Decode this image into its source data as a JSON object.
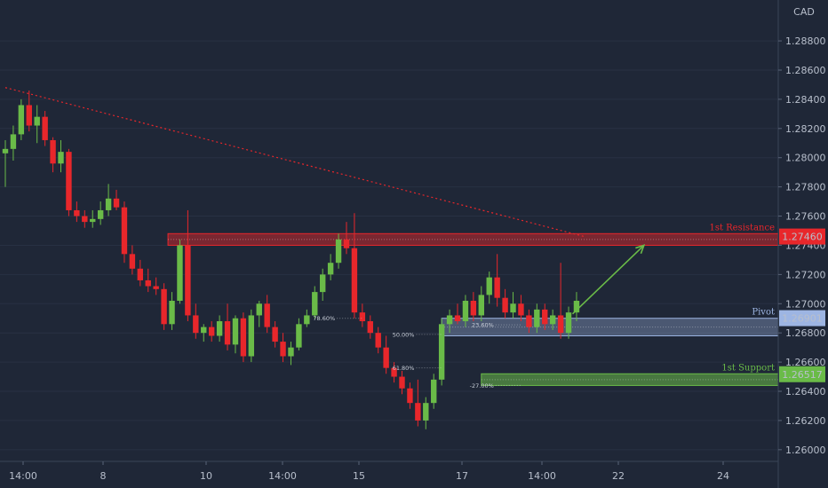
{
  "chart_data": {
    "type": "candlestick",
    "currency_label": "CAD",
    "colors": {
      "background": "#1f2737",
      "up": "#6abb48",
      "down": "#e8272b",
      "resistance": "#e8272b",
      "pivot": "#9db5e3",
      "support": "#6abb48",
      "trendline": "#e8272b",
      "arrow": "#6abb48"
    },
    "ylim": [
      1.2592,
      1.2908
    ],
    "y_ticks": [
      "1.26000",
      "1.26200",
      "1.26400",
      "1.26600",
      "1.26800",
      "1.27000",
      "1.27200",
      "1.27400",
      "1.27600",
      "1.27800",
      "1.28000",
      "1.28200",
      "1.28400",
      "1.28600",
      "1.28800"
    ],
    "x_ticks": [
      "14:00",
      "8",
      "10",
      "14:00",
      "15",
      "17",
      "14:00",
      "22",
      "24"
    ],
    "candles": [
      [
        1.2803,
        1.2812,
        1.278,
        1.2806
      ],
      [
        1.2806,
        1.2822,
        1.2798,
        1.2816
      ],
      [
        1.2816,
        1.284,
        1.2812,
        1.2836
      ],
      [
        1.2836,
        1.2846,
        1.2818,
        1.2822
      ],
      [
        1.2822,
        1.2836,
        1.281,
        1.2828
      ],
      [
        1.2828,
        1.2832,
        1.2808,
        1.2812
      ],
      [
        1.2812,
        1.2814,
        1.279,
        1.2796
      ],
      [
        1.2796,
        1.2812,
        1.279,
        1.2804
      ],
      [
        1.2804,
        1.2806,
        1.276,
        1.2764
      ],
      [
        1.2764,
        1.277,
        1.2756,
        1.276
      ],
      [
        1.276,
        1.2764,
        1.2752,
        1.2756
      ],
      [
        1.2756,
        1.2764,
        1.2752,
        1.2758
      ],
      [
        1.2758,
        1.277,
        1.2754,
        1.2764
      ],
      [
        1.2764,
        1.2782,
        1.276,
        1.2772
      ],
      [
        1.2772,
        1.2778,
        1.2764,
        1.2766
      ],
      [
        1.2766,
        1.277,
        1.2728,
        1.2734
      ],
      [
        1.2734,
        1.274,
        1.272,
        1.2724
      ],
      [
        1.2724,
        1.273,
        1.2712,
        1.2716
      ],
      [
        1.2716,
        1.2724,
        1.2708,
        1.2712
      ],
      [
        1.2712,
        1.2718,
        1.2706,
        1.271
      ],
      [
        1.271,
        1.2714,
        1.2682,
        1.2686
      ],
      [
        1.2686,
        1.2708,
        1.2682,
        1.2702
      ],
      [
        1.2702,
        1.2744,
        1.27,
        1.274
      ],
      [
        1.274,
        1.2764,
        1.2688,
        1.2692
      ],
      [
        1.2692,
        1.27,
        1.2676,
        1.268
      ],
      [
        1.268,
        1.2686,
        1.2674,
        1.2684
      ],
      [
        1.2684,
        1.2688,
        1.2674,
        1.2678
      ],
      [
        1.2678,
        1.2692,
        1.2674,
        1.2688
      ],
      [
        1.2688,
        1.27,
        1.2668,
        1.2672
      ],
      [
        1.2672,
        1.2692,
        1.2666,
        1.269
      ],
      [
        1.269,
        1.2694,
        1.266,
        1.2664
      ],
      [
        1.2664,
        1.2696,
        1.266,
        1.2692
      ],
      [
        1.2692,
        1.2702,
        1.2684,
        1.27
      ],
      [
        1.27,
        1.2706,
        1.268,
        1.2684
      ],
      [
        1.2684,
        1.2688,
        1.267,
        1.2674
      ],
      [
        1.2674,
        1.268,
        1.266,
        1.2664
      ],
      [
        1.2664,
        1.2674,
        1.2658,
        1.267
      ],
      [
        1.267,
        1.269,
        1.2668,
        1.2686
      ],
      [
        1.2686,
        1.2696,
        1.2684,
        1.2692
      ],
      [
        1.2692,
        1.2712,
        1.269,
        1.2708
      ],
      [
        1.2708,
        1.2724,
        1.2702,
        1.272
      ],
      [
        1.272,
        1.2734,
        1.2716,
        1.2728
      ],
      [
        1.2728,
        1.2748,
        1.2724,
        1.2744
      ],
      [
        1.2744,
        1.2756,
        1.2734,
        1.2738
      ],
      [
        1.2738,
        1.2762,
        1.269,
        1.2694
      ],
      [
        1.2694,
        1.27,
        1.2684,
        1.2688
      ],
      [
        1.2688,
        1.2692,
        1.2676,
        1.268
      ],
      [
        1.268,
        1.2684,
        1.2666,
        1.267
      ],
      [
        1.267,
        1.2678,
        1.2652,
        1.2656
      ],
      [
        1.2656,
        1.266,
        1.2646,
        1.265
      ],
      [
        1.265,
        1.2654,
        1.2638,
        1.2642
      ],
      [
        1.2642,
        1.2646,
        1.2628,
        1.2632
      ],
      [
        1.2632,
        1.2648,
        1.2616,
        1.262
      ],
      [
        1.262,
        1.2636,
        1.2614,
        1.2632
      ],
      [
        1.2632,
        1.2652,
        1.2628,
        1.2648
      ],
      [
        1.2648,
        1.269,
        1.2644,
        1.2686
      ],
      [
        1.2686,
        1.2696,
        1.268,
        1.2692
      ],
      [
        1.2692,
        1.27,
        1.2686,
        1.2688
      ],
      [
        1.2688,
        1.2706,
        1.2684,
        1.2702
      ],
      [
        1.2702,
        1.2708,
        1.2688,
        1.2692
      ],
      [
        1.2692,
        1.2712,
        1.2688,
        1.2706
      ],
      [
        1.2706,
        1.2722,
        1.27,
        1.2718
      ],
      [
        1.2718,
        1.2734,
        1.2698,
        1.2704
      ],
      [
        1.2704,
        1.271,
        1.269,
        1.2694
      ],
      [
        1.2694,
        1.2708,
        1.269,
        1.27
      ],
      [
        1.27,
        1.2706,
        1.2688,
        1.2692
      ],
      [
        1.2692,
        1.2696,
        1.268,
        1.2684
      ],
      [
        1.2684,
        1.27,
        1.268,
        1.2696
      ],
      [
        1.2696,
        1.27,
        1.2682,
        1.2686
      ],
      [
        1.2686,
        1.2696,
        1.2682,
        1.2692
      ],
      [
        1.2692,
        1.2728,
        1.2676,
        1.268
      ],
      [
        1.268,
        1.2698,
        1.2676,
        1.2694
      ],
      [
        1.2694,
        1.2708,
        1.2688,
        1.2702
      ]
    ],
    "trendline": {
      "from": [
        0,
        1.2848
      ],
      "to": [
        73,
        1.2746
      ]
    },
    "resistance": {
      "label": "1st Resistance",
      "value": "1.27460",
      "range": [
        1.274,
        1.2748
      ],
      "from_index": 20.5
    },
    "pivot": {
      "label": "Pivot",
      "value": "1.26901",
      "range": [
        1.2678,
        1.269
      ],
      "from_index": 55
    },
    "support": {
      "label": "1st Support",
      "value": "1.26517",
      "range": [
        1.2644,
        1.2652
      ],
      "from_index": 60
    },
    "fib_labels": [
      {
        "text": "78.60%",
        "x": 40,
        "y": 1.269
      },
      {
        "text": "50.00%",
        "x": 50,
        "y": 1.2679
      },
      {
        "text": "23.60%",
        "x": 60,
        "y": 1.26855
      },
      {
        "text": "61.80%",
        "x": 50,
        "y": 1.2656
      },
      {
        "text": "-27.00%",
        "x": 60,
        "y": 1.2644
      }
    ],
    "arrow": {
      "from": [
        71.5,
        1.2693
      ],
      "to": [
        80.5,
        1.274
      ]
    }
  }
}
